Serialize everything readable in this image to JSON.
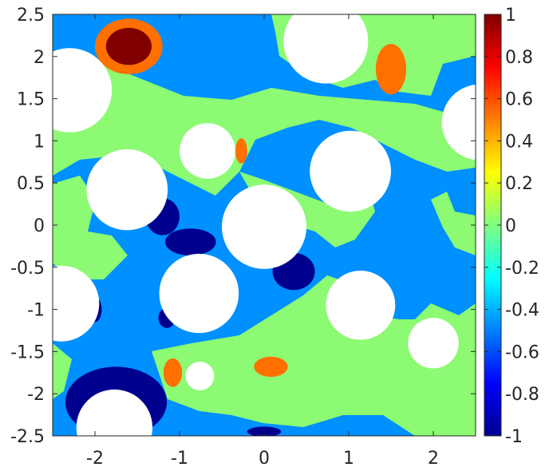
{
  "chart_data": {
    "type": "heatmap",
    "title": "",
    "xlabel": "",
    "ylabel": "",
    "xlim": [
      -2.5,
      2.5
    ],
    "ylim": [
      -2.5,
      2.5
    ],
    "clim": [
      -1,
      1
    ],
    "grid": false,
    "colormap": "jet",
    "x_ticks": [
      -2,
      -1,
      0,
      1,
      2
    ],
    "x_tick_labels": [
      "-2",
      "-1",
      "0",
      "1",
      "2"
    ],
    "y_ticks": [
      2.5,
      2,
      1.5,
      1,
      0.5,
      0,
      -0.5,
      -1,
      -1.5,
      -2,
      -2.5
    ],
    "y_tick_labels": [
      "2.5",
      "2",
      "1.5",
      "1",
      "0.5",
      "0",
      "-0.5",
      "-1",
      "-1.5",
      "-2",
      "-2.5"
    ],
    "colorbar_ticks": [
      1,
      0.8,
      0.6,
      0.4,
      0.2,
      0,
      -0.2,
      -0.4,
      -0.6,
      -0.8,
      -1
    ],
    "colorbar_tick_labels": [
      "1",
      "0.8",
      "0.6",
      "0.4",
      "0.2",
      "0",
      "-0.2",
      "-0.4",
      "-0.6",
      "-0.8",
      "-1"
    ],
    "contour_level_colors": {
      "-1": "#00008f",
      "-0.5": "#0090ff",
      "0": "#8cfa73",
      "0.5": "#ff7000",
      "1": "#800000"
    },
    "masked_holes_value": "none",
    "holes": [
      {
        "cx": -2.3,
        "cy": 1.6,
        "r": 0.5
      },
      {
        "cx": 0.73,
        "cy": 2.18,
        "r": 0.5
      },
      {
        "cx": 2.55,
        "cy": 1.22,
        "r": 0.45
      },
      {
        "cx": -0.67,
        "cy": 0.88,
        "r": 0.33
      },
      {
        "cx": -1.62,
        "cy": 0.42,
        "r": 0.48
      },
      {
        "cx": 1.02,
        "cy": 0.64,
        "r": 0.48
      },
      {
        "cx": 0.0,
        "cy": -0.02,
        "r": 0.5
      },
      {
        "cx": -0.77,
        "cy": -0.81,
        "r": 0.47
      },
      {
        "cx": 1.14,
        "cy": -0.95,
        "r": 0.41
      },
      {
        "cx": -2.4,
        "cy": -0.93,
        "r": 0.45
      },
      {
        "cx": 2.0,
        "cy": -1.4,
        "r": 0.3
      },
      {
        "cx": -0.76,
        "cy": -1.79,
        "r": 0.17
      },
      {
        "cx": -1.77,
        "cy": -2.4,
        "r": 0.45
      }
    ],
    "level_regions": [
      {
        "value": 0.5,
        "cx": -1.6,
        "cy": 2.12,
        "rx": 0.4,
        "ry": 0.33
      },
      {
        "value": 1,
        "cx": -1.6,
        "cy": 2.12,
        "rx": 0.27,
        "ry": 0.22
      },
      {
        "value": 0.5,
        "cx": 1.5,
        "cy": 1.85,
        "rx": 0.18,
        "ry": 0.3
      },
      {
        "value": 0.5,
        "cx": -0.27,
        "cy": 0.88,
        "rx": 0.07,
        "ry": 0.15
      },
      {
        "value": 0.5,
        "cx": 0.08,
        "cy": -1.68,
        "rx": 0.2,
        "ry": 0.12
      },
      {
        "value": 0.5,
        "cx": -1.08,
        "cy": -1.75,
        "rx": 0.11,
        "ry": 0.17
      },
      {
        "value": -1,
        "cx": 0.35,
        "cy": -0.55,
        "rx": 0.25,
        "ry": 0.22
      },
      {
        "value": -1,
        "cx": -0.87,
        "cy": -0.2,
        "rx": 0.3,
        "ry": 0.16
      },
      {
        "value": -1,
        "cx": -1.2,
        "cy": 0.1,
        "rx": 0.2,
        "ry": 0.22
      },
      {
        "value": -1,
        "cx": -1.75,
        "cy": -2.1,
        "rx": 0.6,
        "ry": 0.42
      },
      {
        "value": -1,
        "cx": -1.15,
        "cy": -1.1,
        "rx": 0.1,
        "ry": 0.12
      },
      {
        "value": -1,
        "cx": -2.0,
        "cy": -1.0,
        "rx": 0.08,
        "ry": 0.15
      },
      {
        "value": -1,
        "cx": 0.0,
        "cy": -2.45,
        "rx": 0.2,
        "ry": 0.06
      }
    ]
  }
}
